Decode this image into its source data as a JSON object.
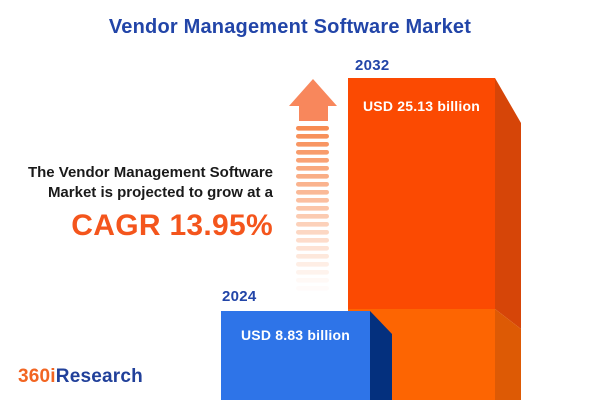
{
  "title": "Vendor Management Software Market",
  "annotation": {
    "line1": "The Vendor Management Software",
    "line2": "Market is projected to grow at a",
    "cagr": "CAGR 13.95%"
  },
  "logo": {
    "prefix": "360i",
    "suffix": "Research"
  },
  "arrow": {
    "stripe_count": 21,
    "head_color": "#F8875C",
    "stripe_color": "#F78B52"
  },
  "chart_data": {
    "type": "bar",
    "title": "Vendor Management Software Market",
    "unit": "USD billion",
    "categories": [
      "2024",
      "2032"
    ],
    "values": [
      8.83,
      25.13
    ],
    "value_labels": [
      "USD 8.83 billion",
      "USD 25.13 billion"
    ],
    "cagr_percent": 13.95,
    "legend": "none",
    "colors": {
      "bar_2024_front": "#2E74E8",
      "bar_2024_side": "#04307E",
      "bar_2032_front_top": "#FB4A02",
      "bar_2032_front_bottom": "#FD6502",
      "bar_2032_side_top": "#D64508",
      "bar_2032_side_bottom": "#DD5A05",
      "accent_orange": "#F4551C",
      "title_blue": "#2245A8",
      "logo_orange": "#F26522",
      "logo_navy": "#21409A"
    }
  }
}
